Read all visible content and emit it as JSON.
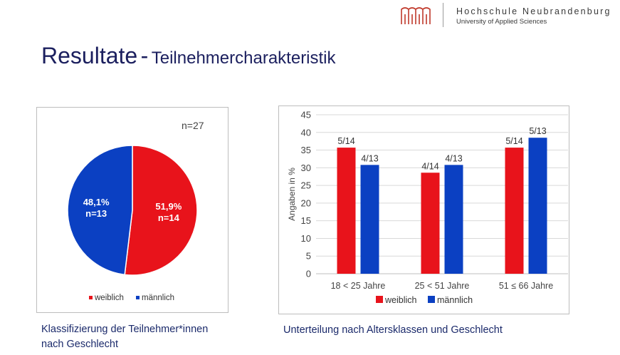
{
  "header": {
    "institution_name": "Hochschule Neubrandenburg",
    "institution_subtitle": "University of Applied Sciences"
  },
  "title": {
    "main": "Resultate",
    "separator": "-",
    "sub": "Teilnehmercharakteristik"
  },
  "colors": {
    "weiblich": "#e8131b",
    "maennlich": "#0b40c2",
    "title": "#1b1f5e"
  },
  "chart_data": [
    {
      "type": "pie",
      "annotation": "n=27",
      "slices": [
        {
          "name": "weiblich",
          "value": 51.9,
          "label_pct": "51,9%",
          "label_n": "n=14",
          "color": "#e8131b"
        },
        {
          "name": "männlich",
          "value": 48.1,
          "label_pct": "48,1%",
          "label_n": "n=13",
          "color": "#0b40c2"
        }
      ],
      "legend_position": "bottom",
      "caption": [
        "Klassifizierung der Teilnehmer*innen",
        "nach Geschlecht"
      ]
    },
    {
      "type": "bar",
      "categories": [
        "18 < 25 Jahre",
        "25 < 51 Jahre",
        "51 ≤ 66 Jahre"
      ],
      "series": [
        {
          "name": "weiblich",
          "color": "#e8131b",
          "values": [
            35.7,
            28.6,
            35.7
          ],
          "labels": [
            "5/14",
            "4/14",
            "5/14"
          ]
        },
        {
          "name": "männlich",
          "color": "#0b40c2",
          "values": [
            30.8,
            30.8,
            38.5
          ],
          "labels": [
            "4/13",
            "4/13",
            "5/13"
          ]
        }
      ],
      "ylabel": "Angaben in %",
      "ylim": [
        0,
        45
      ],
      "yticks": [
        0,
        5,
        10,
        15,
        20,
        25,
        30,
        35,
        40,
        45
      ],
      "grid": true,
      "legend_position": "bottom",
      "caption": [
        "Unterteilung nach Altersklassen und Geschlecht"
      ]
    }
  ]
}
